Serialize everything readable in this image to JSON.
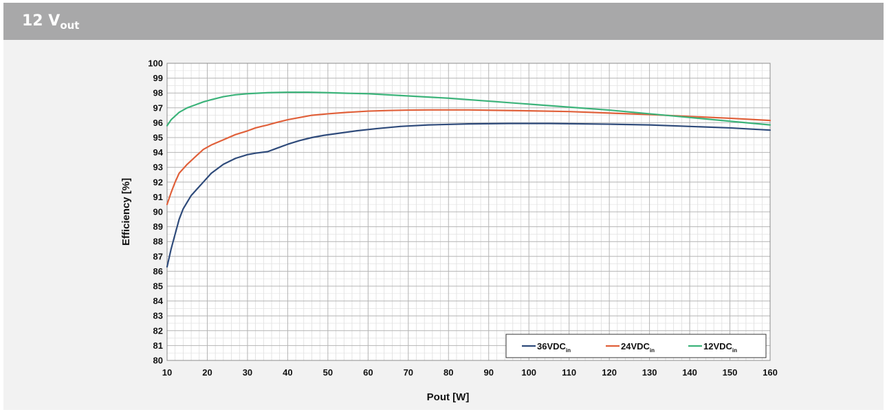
{
  "header": {
    "title_main": "12 V",
    "title_sub": "out",
    "background": "#a8a8a9"
  },
  "chart_data": {
    "type": "line",
    "title": "",
    "xlabel": "Pout [W]",
    "ylabel": "Efficiency [%]",
    "xlim": [
      10,
      160
    ],
    "ylim": [
      80,
      100
    ],
    "xticks": [
      10,
      20,
      30,
      40,
      50,
      60,
      70,
      80,
      90,
      100,
      110,
      120,
      130,
      140,
      150,
      160
    ],
    "yticks": [
      80,
      81,
      82,
      83,
      84,
      85,
      86,
      87,
      88,
      89,
      90,
      91,
      92,
      93,
      94,
      95,
      96,
      97,
      98,
      99,
      100
    ],
    "grid": true,
    "legend_position": "bottom-right",
    "series": [
      {
        "name": "36VDC",
        "name_sub": "in",
        "color": "#2e4a7a",
        "x": [
          10,
          11,
          12,
          13,
          14,
          16,
          18,
          19,
          21,
          24,
          27,
          30,
          32,
          35,
          37,
          40,
          43,
          46,
          49,
          53,
          57,
          62,
          68,
          75,
          85,
          95,
          105,
          120,
          130,
          140,
          150,
          160
        ],
        "y": [
          86.3,
          87.5,
          88.5,
          89.5,
          90.2,
          91.1,
          91.7,
          92.0,
          92.6,
          93.2,
          93.6,
          93.85,
          93.95,
          94.05,
          94.25,
          94.55,
          94.8,
          95.0,
          95.15,
          95.3,
          95.45,
          95.6,
          95.75,
          95.85,
          95.92,
          95.95,
          95.95,
          95.9,
          95.85,
          95.75,
          95.65,
          95.5
        ]
      },
      {
        "name": "24VDC",
        "name_sub": "in",
        "color": "#e0603a",
        "x": [
          10,
          11,
          12,
          13,
          15,
          17,
          19,
          21,
          24,
          27,
          30,
          32,
          35,
          37,
          40,
          43,
          46,
          50,
          55,
          60,
          65,
          70,
          75,
          80,
          85,
          90,
          100,
          110,
          120,
          130,
          140,
          150,
          160
        ],
        "y": [
          90.5,
          91.3,
          92.0,
          92.6,
          93.2,
          93.7,
          94.2,
          94.5,
          94.85,
          95.2,
          95.45,
          95.65,
          95.85,
          96.0,
          96.2,
          96.35,
          96.5,
          96.6,
          96.7,
          96.78,
          96.82,
          96.85,
          96.86,
          96.86,
          96.86,
          96.84,
          96.8,
          96.75,
          96.65,
          96.55,
          96.42,
          96.3,
          96.15
        ]
      },
      {
        "name": "12VDC",
        "name_sub": "in",
        "color": "#3cb37a",
        "x": [
          10,
          11,
          12,
          13,
          15,
          17,
          19,
          21,
          24,
          27,
          30,
          35,
          40,
          45,
          50,
          55,
          60,
          70,
          80,
          90,
          100,
          110,
          120,
          130,
          140,
          150,
          160
        ],
        "y": [
          95.8,
          96.2,
          96.45,
          96.7,
          97.0,
          97.2,
          97.4,
          97.55,
          97.75,
          97.88,
          97.95,
          98.02,
          98.05,
          98.05,
          98.02,
          97.98,
          97.95,
          97.8,
          97.65,
          97.45,
          97.25,
          97.05,
          96.85,
          96.6,
          96.35,
          96.1,
          95.85
        ]
      }
    ]
  }
}
